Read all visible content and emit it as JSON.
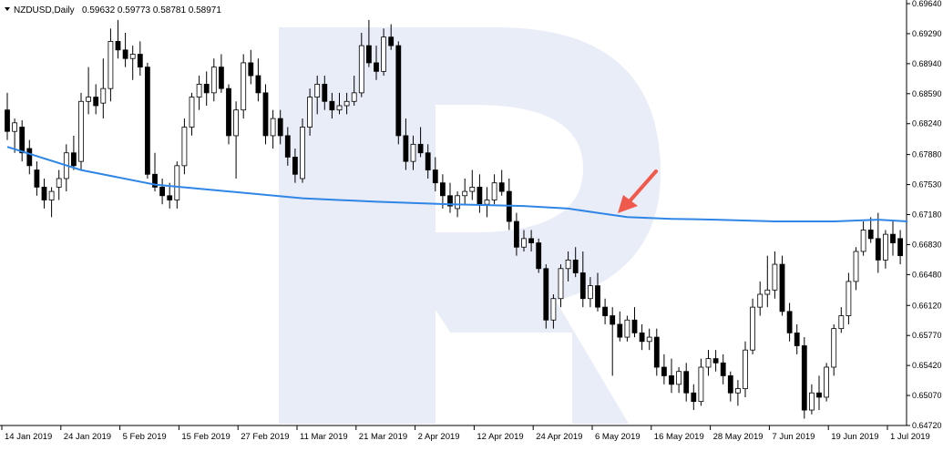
{
  "header": {
    "symbol": "NZDUSD,Daily",
    "ohlc": "0.59632 0.59773 0.58781 0.58971"
  },
  "colors": {
    "background": "#ffffff",
    "axis": "#000000",
    "bull_fill": "#ffffff",
    "bear_fill": "#000000",
    "ma_line": "#2f86e6",
    "watermark": "#e8edf7",
    "arrow": "#f05a4c"
  },
  "watermark": {
    "shape": "large letter R logo"
  },
  "annotation": {
    "type": "arrow",
    "color": "#f05a4c",
    "points_to": "moving-average line near 6 May 2019"
  },
  "chart_data": {
    "type": "candlestick",
    "ylim": [
      0.6472,
      0.6964
    ],
    "y_ticks": [
      "0.69640",
      "0.69290",
      "0.68940",
      "0.68590",
      "0.68240",
      "0.67880",
      "0.67530",
      "0.67180",
      "0.66830",
      "0.66480",
      "0.66120",
      "0.65770",
      "0.65420",
      "0.65070",
      "0.64720"
    ],
    "x_ticks": [
      {
        "label": "14 Jan 2019",
        "index": 0
      },
      {
        "label": "24 Jan 2019",
        "index": 8
      },
      {
        "label": "5 Feb 2019",
        "index": 16
      },
      {
        "label": "15 Feb 2019",
        "index": 24
      },
      {
        "label": "27 Feb 2019",
        "index": 32
      },
      {
        "label": "11 Mar 2019",
        "index": 40
      },
      {
        "label": "21 Mar 2019",
        "index": 48
      },
      {
        "label": "2 Apr 2019",
        "index": 56
      },
      {
        "label": "12 Apr 2019",
        "index": 64
      },
      {
        "label": "24 Apr 2019",
        "index": 72
      },
      {
        "label": "6 May 2019",
        "index": 80
      },
      {
        "label": "16 May 2019",
        "index": 88
      },
      {
        "label": "28 May 2019",
        "index": 96
      },
      {
        "label": "7 Jun 2019",
        "index": 104
      },
      {
        "label": "19 Jun 2019",
        "index": 112
      },
      {
        "label": "1 Jul 2019",
        "index": 120
      }
    ],
    "candles": [
      [
        0.684,
        0.686,
        0.6805,
        0.6815
      ],
      [
        0.6815,
        0.683,
        0.679,
        0.6825
      ],
      [
        0.682,
        0.6828,
        0.678,
        0.679
      ],
      [
        0.6795,
        0.6805,
        0.6765,
        0.6775
      ],
      [
        0.677,
        0.678,
        0.674,
        0.675
      ],
      [
        0.675,
        0.676,
        0.6725,
        0.6735
      ],
      [
        0.6735,
        0.675,
        0.6715,
        0.6745
      ],
      [
        0.675,
        0.677,
        0.6735,
        0.676
      ],
      [
        0.676,
        0.68,
        0.6745,
        0.679
      ],
      [
        0.679,
        0.681,
        0.677,
        0.6775
      ],
      [
        0.678,
        0.686,
        0.677,
        0.685
      ],
      [
        0.685,
        0.689,
        0.6835,
        0.6855
      ],
      [
        0.6855,
        0.687,
        0.6835,
        0.6845
      ],
      [
        0.6848,
        0.69,
        0.683,
        0.6865
      ],
      [
        0.6865,
        0.6935,
        0.685,
        0.692
      ],
      [
        0.692,
        0.6945,
        0.69,
        0.691
      ],
      [
        0.691,
        0.693,
        0.689,
        0.69
      ],
      [
        0.69,
        0.6915,
        0.6875,
        0.6905
      ],
      [
        0.6905,
        0.692,
        0.688,
        0.689
      ],
      [
        0.689,
        0.6895,
        0.676,
        0.6765
      ],
      [
        0.6765,
        0.679,
        0.6745,
        0.675
      ],
      [
        0.675,
        0.676,
        0.673,
        0.674
      ],
      [
        0.674,
        0.6755,
        0.6725,
        0.6735
      ],
      [
        0.6735,
        0.678,
        0.6725,
        0.6775
      ],
      [
        0.6775,
        0.683,
        0.6765,
        0.682
      ],
      [
        0.682,
        0.686,
        0.681,
        0.6855
      ],
      [
        0.6855,
        0.688,
        0.684,
        0.687
      ],
      [
        0.687,
        0.6885,
        0.6845,
        0.686
      ],
      [
        0.686,
        0.69,
        0.685,
        0.689
      ],
      [
        0.689,
        0.6905,
        0.686,
        0.6865
      ],
      [
        0.6865,
        0.687,
        0.68,
        0.681
      ],
      [
        0.681,
        0.685,
        0.676,
        0.684
      ],
      [
        0.684,
        0.6905,
        0.683,
        0.6895
      ],
      [
        0.6895,
        0.691,
        0.687,
        0.688
      ],
      [
        0.688,
        0.69,
        0.685,
        0.686
      ],
      [
        0.686,
        0.687,
        0.68,
        0.681
      ],
      [
        0.681,
        0.684,
        0.6795,
        0.683
      ],
      [
        0.683,
        0.684,
        0.68,
        0.681
      ],
      [
        0.681,
        0.682,
        0.6775,
        0.6785
      ],
      [
        0.6785,
        0.6795,
        0.6755,
        0.6765
      ],
      [
        0.676,
        0.683,
        0.6755,
        0.682
      ],
      [
        0.682,
        0.6865,
        0.681,
        0.6855
      ],
      [
        0.6855,
        0.688,
        0.6835,
        0.687
      ],
      [
        0.687,
        0.688,
        0.684,
        0.685
      ],
      [
        0.685,
        0.686,
        0.683,
        0.684
      ],
      [
        0.684,
        0.686,
        0.6835,
        0.6845
      ],
      [
        0.6845,
        0.686,
        0.6835,
        0.685
      ],
      [
        0.685,
        0.688,
        0.6845,
        0.686
      ],
      [
        0.686,
        0.693,
        0.6855,
        0.6915
      ],
      [
        0.6915,
        0.6945,
        0.689,
        0.6895
      ],
      [
        0.6895,
        0.6915,
        0.6875,
        0.6885
      ],
      [
        0.6885,
        0.6935,
        0.688,
        0.6925
      ],
      [
        0.6925,
        0.694,
        0.691,
        0.6915
      ],
      [
        0.6915,
        0.692,
        0.68,
        0.681
      ],
      [
        0.681,
        0.683,
        0.677,
        0.678
      ],
      [
        0.678,
        0.681,
        0.677,
        0.68
      ],
      [
        0.68,
        0.682,
        0.6785,
        0.679
      ],
      [
        0.679,
        0.68,
        0.676,
        0.677
      ],
      [
        0.677,
        0.6785,
        0.6745,
        0.6755
      ],
      [
        0.6755,
        0.6765,
        0.6725,
        0.674
      ],
      [
        0.674,
        0.6755,
        0.672,
        0.6728
      ],
      [
        0.6725,
        0.6745,
        0.6715,
        0.674
      ],
      [
        0.674,
        0.676,
        0.673,
        0.6745
      ],
      [
        0.6745,
        0.677,
        0.6735,
        0.675
      ],
      [
        0.675,
        0.6765,
        0.672,
        0.673
      ],
      [
        0.673,
        0.675,
        0.6715,
        0.6735
      ],
      [
        0.6735,
        0.6765,
        0.673,
        0.6755
      ],
      [
        0.6755,
        0.677,
        0.674,
        0.6745
      ],
      [
        0.6745,
        0.676,
        0.67,
        0.671
      ],
      [
        0.671,
        0.672,
        0.667,
        0.668
      ],
      [
        0.668,
        0.67,
        0.6675,
        0.669
      ],
      [
        0.669,
        0.67,
        0.6675,
        0.6685
      ],
      [
        0.6685,
        0.669,
        0.665,
        0.6655
      ],
      [
        0.6655,
        0.666,
        0.6585,
        0.6595
      ],
      [
        0.6595,
        0.6625,
        0.6585,
        0.662
      ],
      [
        0.662,
        0.666,
        0.661,
        0.6655
      ],
      [
        0.6655,
        0.6675,
        0.664,
        0.6665
      ],
      [
        0.6665,
        0.668,
        0.6645,
        0.665
      ],
      [
        0.665,
        0.6675,
        0.661,
        0.662
      ],
      [
        0.662,
        0.6645,
        0.661,
        0.6635
      ],
      [
        0.6635,
        0.665,
        0.6605,
        0.661
      ],
      [
        0.661,
        0.662,
        0.659,
        0.66
      ],
      [
        0.66,
        0.661,
        0.653,
        0.659
      ],
      [
        0.659,
        0.6605,
        0.657,
        0.6575
      ],
      [
        0.6575,
        0.66,
        0.657,
        0.6595
      ],
      [
        0.6595,
        0.661,
        0.6575,
        0.658
      ],
      [
        0.658,
        0.659,
        0.656,
        0.657
      ],
      [
        0.657,
        0.6585,
        0.656,
        0.6575
      ],
      [
        0.6575,
        0.6585,
        0.653,
        0.654
      ],
      [
        0.654,
        0.6555,
        0.652,
        0.653
      ],
      [
        0.653,
        0.655,
        0.651,
        0.652
      ],
      [
        0.652,
        0.654,
        0.651,
        0.6535
      ],
      [
        0.6535,
        0.6545,
        0.65,
        0.651
      ],
      [
        0.651,
        0.652,
        0.649,
        0.65
      ],
      [
        0.65,
        0.655,
        0.6495,
        0.654
      ],
      [
        0.654,
        0.656,
        0.653,
        0.655
      ],
      [
        0.655,
        0.656,
        0.6535,
        0.6545
      ],
      [
        0.6545,
        0.6555,
        0.652,
        0.653
      ],
      [
        0.653,
        0.6535,
        0.65,
        0.651
      ],
      [
        0.651,
        0.6525,
        0.6495,
        0.6515
      ],
      [
        0.6515,
        0.657,
        0.6505,
        0.656
      ],
      [
        0.656,
        0.662,
        0.6555,
        0.661
      ],
      [
        0.661,
        0.664,
        0.66,
        0.6625
      ],
      [
        0.6625,
        0.667,
        0.661,
        0.663
      ],
      [
        0.663,
        0.6675,
        0.662,
        0.666
      ],
      [
        0.666,
        0.667,
        0.66,
        0.6605
      ],
      [
        0.6605,
        0.6615,
        0.657,
        0.658
      ],
      [
        0.658,
        0.659,
        0.6555,
        0.6565
      ],
      [
        0.6565,
        0.6575,
        0.648,
        0.649
      ],
      [
        0.649,
        0.652,
        0.6485,
        0.651
      ],
      [
        0.651,
        0.653,
        0.649,
        0.6505
      ],
      [
        0.6505,
        0.6545,
        0.65,
        0.654
      ],
      [
        0.654,
        0.659,
        0.653,
        0.6585
      ],
      [
        0.6585,
        0.661,
        0.658,
        0.66
      ],
      [
        0.66,
        0.665,
        0.659,
        0.664
      ],
      [
        0.664,
        0.668,
        0.663,
        0.6675
      ],
      [
        0.6675,
        0.671,
        0.667,
        0.67
      ],
      [
        0.67,
        0.6715,
        0.6685,
        0.669
      ],
      [
        0.669,
        0.672,
        0.665,
        0.6665
      ],
      [
        0.6665,
        0.67,
        0.6655,
        0.6695
      ],
      [
        0.6695,
        0.671,
        0.667,
        0.6685
      ],
      [
        0.669,
        0.67,
        0.666,
        0.667
      ]
    ],
    "moving_average": [
      [
        0,
        0.6797
      ],
      [
        10,
        0.677
      ],
      [
        20,
        0.6753
      ],
      [
        30,
        0.6745
      ],
      [
        40,
        0.6737
      ],
      [
        50,
        0.6733
      ],
      [
        60,
        0.673
      ],
      [
        70,
        0.6728
      ],
      [
        76,
        0.6725
      ],
      [
        80,
        0.672
      ],
      [
        84,
        0.6715
      ],
      [
        90,
        0.6713
      ],
      [
        96,
        0.6712
      ],
      [
        104,
        0.671
      ],
      [
        112,
        0.671
      ],
      [
        118,
        0.6712
      ],
      [
        122,
        0.671
      ]
    ]
  }
}
